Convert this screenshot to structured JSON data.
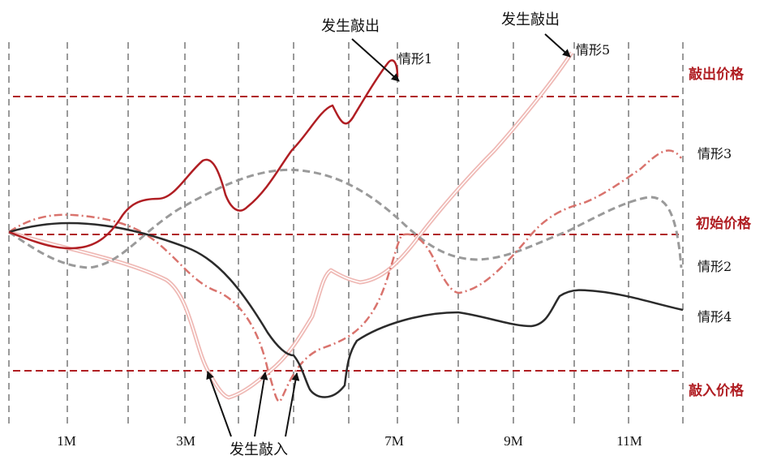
{
  "chart_data": {
    "type": "line",
    "title": "",
    "xlabel": "",
    "ylabel": "",
    "x_ticks": [
      "1M",
      "3M",
      "7M",
      "9M",
      "11M"
    ],
    "reference_lines": [
      {
        "label": "敲出价格",
        "color": "#b01e23"
      },
      {
        "label": "初始价格",
        "color": "#b01e23"
      },
      {
        "label": "敲入价格",
        "color": "#b01e23"
      }
    ],
    "annotations": {
      "knock_out_1": "发生敲出",
      "knock_out_5": "发生敲出",
      "knock_in": "发生敲入"
    },
    "series": [
      {
        "name": "情形1",
        "color": "#b01e23",
        "style": "solid"
      },
      {
        "name": "情形2",
        "color": "#9a9a9a",
        "style": "dashed"
      },
      {
        "name": "情形3",
        "color": "#d9736d",
        "style": "dashdot"
      },
      {
        "name": "情形4",
        "color": "#2b2b2b",
        "style": "solid"
      },
      {
        "name": "情形5",
        "color": "#efb9b5",
        "style": "double"
      }
    ]
  }
}
